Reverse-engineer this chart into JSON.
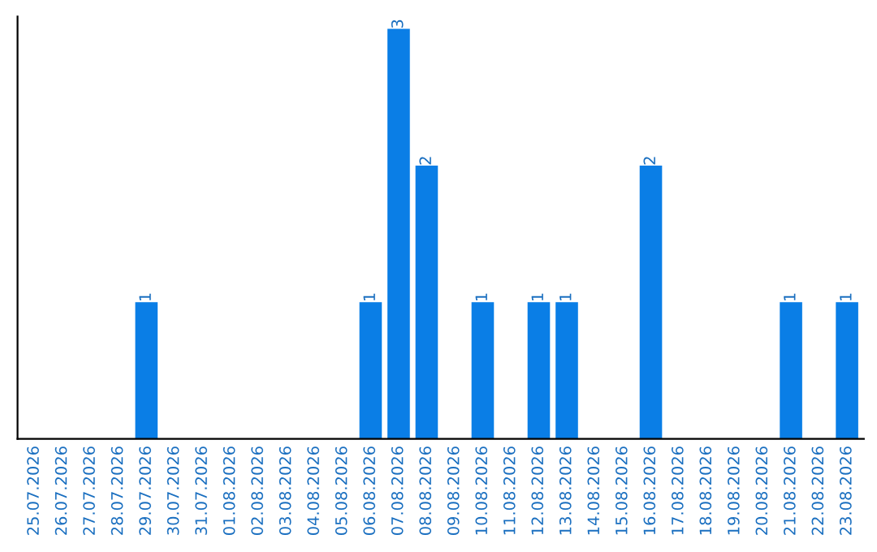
{
  "chart_data": {
    "type": "bar",
    "categories": [
      "25.07.2026",
      "26.07.2026",
      "27.07.2026",
      "28.07.2026",
      "29.07.2026",
      "30.07.2026",
      "31.07.2026",
      "01.08.2026",
      "02.08.2026",
      "03.08.2026",
      "04.08.2026",
      "05.08.2026",
      "06.08.2026",
      "07.08.2026",
      "08.08.2026",
      "09.08.2026",
      "10.08.2026",
      "11.08.2026",
      "12.08.2026",
      "13.08.2026",
      "14.08.2026",
      "15.08.2026",
      "16.08.2026",
      "17.08.2026",
      "18.08.2026",
      "19.08.2026",
      "20.08.2026",
      "21.08.2026",
      "22.08.2026",
      "23.08.2026"
    ],
    "values": [
      0,
      0,
      0,
      0,
      1,
      0,
      0,
      0,
      0,
      0,
      0,
      0,
      1,
      3,
      2,
      0,
      1,
      0,
      1,
      1,
      0,
      0,
      2,
      0,
      0,
      0,
      0,
      1,
      0,
      1
    ],
    "value_labels": [
      null,
      null,
      null,
      null,
      "1",
      null,
      null,
      null,
      null,
      null,
      null,
      null,
      "1",
      "3",
      "2",
      null,
      "1",
      null,
      "1",
      "1",
      null,
      null,
      "2",
      null,
      null,
      null,
      null,
      "1",
      null,
      "1"
    ],
    "color": "#0a7ee6",
    "tick_labels": "x",
    "grid": false,
    "legend": false
  }
}
